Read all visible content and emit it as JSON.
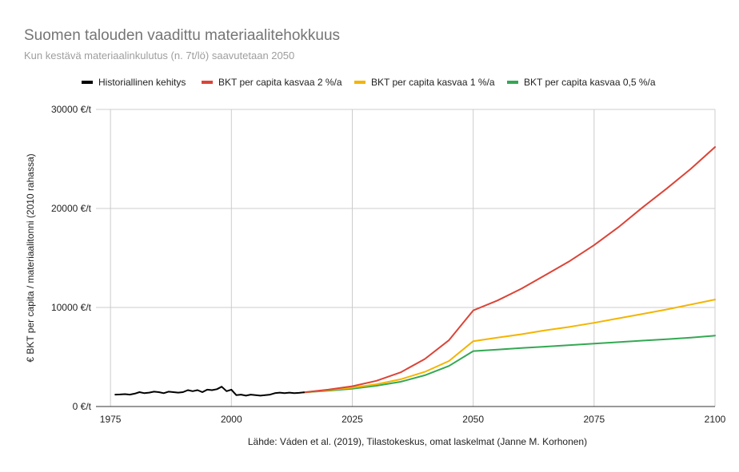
{
  "chart_data": {
    "type": "line",
    "title": "Suomen talouden vaadittu materiaalitehokkuus",
    "subtitle": "Kun kestävä materiaalinkulutus (n. 7t/lö) saavutetaan 2050",
    "ylabel": "€ BKT per capita / materiaalitonni (2010 rahassa)",
    "xlabel": "",
    "source": "Lähde: Váden et al. (2019), Tilastokeskus, omat laskelmat (Janne M. Korhonen)",
    "xlim": [
      1972,
      2100
    ],
    "ylim": [
      0,
      30000
    ],
    "x_ticks": [
      1975,
      2000,
      2025,
      2050,
      2075,
      2100
    ],
    "y_ticks": [
      0,
      10000,
      20000,
      30000
    ],
    "y_tick_labels": [
      "0 €/t",
      "10000 €/t",
      "20000 €/t",
      "30000 €/t"
    ],
    "grid": true,
    "legend_position": "top",
    "series": [
      {
        "name": "Historiallinen kehitys",
        "color": "#000000",
        "x": [
          1976,
          1977,
          1978,
          1979,
          1980,
          1981,
          1982,
          1983,
          1984,
          1985,
          1986,
          1987,
          1988,
          1989,
          1990,
          1991,
          1992,
          1993,
          1994,
          1995,
          1996,
          1997,
          1998,
          1999,
          2000,
          2001,
          2002,
          2003,
          2004,
          2005,
          2006,
          2007,
          2008,
          2009,
          2010,
          2011,
          2012,
          2013,
          2014,
          2015
        ],
        "y": [
          1200,
          1220,
          1250,
          1200,
          1300,
          1450,
          1350,
          1400,
          1500,
          1450,
          1350,
          1500,
          1450,
          1400,
          1450,
          1650,
          1550,
          1650,
          1450,
          1700,
          1650,
          1750,
          2000,
          1550,
          1700,
          1150,
          1200,
          1100,
          1200,
          1150,
          1100,
          1150,
          1200,
          1350,
          1400,
          1350,
          1400,
          1350,
          1380,
          1430
        ]
      },
      {
        "name": "BKT per capita kasvaa 2 %/a",
        "color": "#db4437",
        "x": [
          2015,
          2020,
          2025,
          2030,
          2035,
          2040,
          2045,
          2050,
          2055,
          2060,
          2065,
          2070,
          2075,
          2080,
          2085,
          2090,
          2095,
          2100
        ],
        "y": [
          1430,
          1700,
          2050,
          2600,
          3450,
          4800,
          6700,
          9700,
          10700,
          11900,
          13300,
          14700,
          16300,
          18100,
          20100,
          22000,
          24000,
          26200
        ]
      },
      {
        "name": "BKT per capita kasvaa 1 %/a",
        "color": "#f4b400",
        "x": [
          2015,
          2020,
          2025,
          2030,
          2035,
          2040,
          2045,
          2050,
          2055,
          2060,
          2065,
          2070,
          2075,
          2080,
          2085,
          2090,
          2095,
          2100
        ],
        "y": [
          1430,
          1650,
          1900,
          2250,
          2750,
          3500,
          4600,
          6600,
          6950,
          7300,
          7700,
          8050,
          8450,
          8900,
          9350,
          9800,
          10300,
          10800
        ]
      },
      {
        "name": "BKT per capita kasvaa 0,5 %/a",
        "color": "#34a853",
        "x": [
          2015,
          2020,
          2025,
          2030,
          2035,
          2040,
          2045,
          2050,
          2055,
          2060,
          2065,
          2070,
          2075,
          2080,
          2085,
          2090,
          2095,
          2100
        ],
        "y": [
          1430,
          1600,
          1800,
          2100,
          2500,
          3150,
          4100,
          5600,
          5750,
          5900,
          6050,
          6200,
          6350,
          6500,
          6650,
          6800,
          6950,
          7150
        ]
      }
    ]
  }
}
